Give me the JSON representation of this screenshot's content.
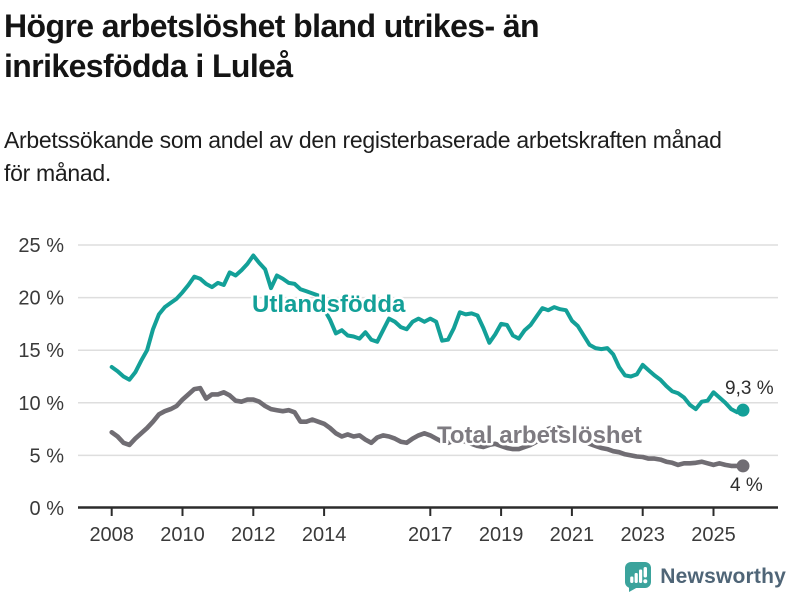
{
  "chart_data": {
    "type": "line",
    "title_line1": "Högre arbetslöshet bland utrikes- än",
    "title_line2": "inrikesfödda i Luleå",
    "subtitle_line1": "Arbetssökande som andel av den registerbaserade arbetskraften månad",
    "subtitle_line2": "för månad.",
    "x_start_year": 2008,
    "x_step_years": 0.166667,
    "x_axis": {
      "tick_years": [
        2008,
        2010,
        2012,
        2014,
        2017,
        2019,
        2021,
        2023,
        2025
      ],
      "tick_labels": [
        "2008",
        "2010",
        "2012",
        "2014",
        "2017",
        "2019",
        "2021",
        "2023",
        "2025"
      ]
    },
    "y_axis": {
      "min": 0,
      "max": 25,
      "tick_values": [
        0,
        5,
        10,
        15,
        20,
        25
      ],
      "tick_labels": [
        "0 %",
        "5 %",
        "10 %",
        "15 %",
        "20 %",
        "25 %"
      ],
      "grid": true
    },
    "legend_position": "inline-labels",
    "annotation_color": "#2E2E2E",
    "series": [
      {
        "name": "Utlandsfödda",
        "label": "Utlandsfödda",
        "color": "#13A098",
        "label_color": "#13A098",
        "end_label": "9,3 %",
        "end_value": 9.3,
        "values": [
          13.4,
          13.0,
          12.5,
          12.2,
          12.9,
          14.0,
          15.0,
          17.0,
          18.4,
          19.1,
          19.5,
          19.9,
          20.5,
          21.2,
          22.0,
          21.8,
          21.3,
          21.0,
          21.4,
          21.2,
          22.4,
          22.1,
          22.6,
          23.2,
          24.0,
          23.3,
          22.7,
          20.9,
          22.1,
          21.8,
          21.4,
          21.3,
          20.8,
          20.6,
          20.4,
          20.2,
          18.9,
          17.9,
          16.6,
          16.9,
          16.4,
          16.3,
          16.1,
          16.7,
          16.0,
          15.8,
          16.9,
          18.0,
          17.7,
          17.2,
          17.0,
          17.7,
          18.0,
          17.7,
          18.0,
          17.7,
          15.9,
          16.0,
          17.1,
          18.6,
          18.4,
          18.5,
          18.3,
          17.1,
          15.7,
          16.5,
          17.5,
          17.4,
          16.4,
          16.1,
          16.9,
          17.4,
          18.2,
          19.0,
          18.8,
          19.1,
          18.9,
          18.8,
          17.8,
          17.3,
          16.4,
          15.5,
          15.2,
          15.1,
          15.2,
          14.6,
          13.4,
          12.6,
          12.5,
          12.7,
          13.6,
          13.1,
          12.6,
          12.2,
          11.6,
          11.1,
          10.9,
          10.5,
          9.8,
          9.4,
          10.1,
          10.2,
          11.0,
          10.5,
          10.0,
          9.4,
          9.1,
          9.3
        ]
      },
      {
        "name": "Total arbetslöshet",
        "label": "Total arbetslöshet",
        "color": "#706D73",
        "label_color": "#7E7B81",
        "end_label": "4 %",
        "end_value": 4.0,
        "values": [
          7.2,
          6.8,
          6.2,
          6.0,
          6.6,
          7.1,
          7.6,
          8.2,
          8.9,
          9.2,
          9.4,
          9.7,
          10.3,
          10.8,
          11.3,
          11.4,
          10.4,
          10.8,
          10.8,
          11.0,
          10.7,
          10.2,
          10.1,
          10.3,
          10.3,
          10.1,
          9.7,
          9.4,
          9.3,
          9.2,
          9.3,
          9.1,
          8.2,
          8.2,
          8.4,
          8.2,
          8.0,
          7.6,
          7.1,
          6.8,
          7.0,
          6.8,
          6.9,
          6.5,
          6.2,
          6.7,
          6.9,
          6.8,
          6.6,
          6.3,
          6.2,
          6.6,
          6.9,
          7.1,
          6.9,
          6.6,
          6.3,
          6.2,
          6.4,
          6.5,
          6.3,
          6.1,
          5.9,
          5.8,
          6.0,
          6.1,
          5.9,
          5.7,
          5.6,
          5.6,
          5.8,
          6.0,
          6.3,
          6.9,
          7.5,
          7.7,
          7.6,
          7.3,
          7.0,
          6.7,
          6.4,
          6.1,
          5.9,
          5.7,
          5.6,
          5.4,
          5.3,
          5.1,
          5.0,
          4.9,
          4.85,
          4.7,
          4.7,
          4.6,
          4.4,
          4.3,
          4.1,
          4.25,
          4.25,
          4.3,
          4.4,
          4.25,
          4.1,
          4.25,
          4.1,
          4.0,
          4.0,
          4.0
        ]
      }
    ]
  },
  "branding": {
    "logo_text": "Newsworthy",
    "logo_color": "#3BA39C",
    "logo_text_color": "#4F6577"
  }
}
